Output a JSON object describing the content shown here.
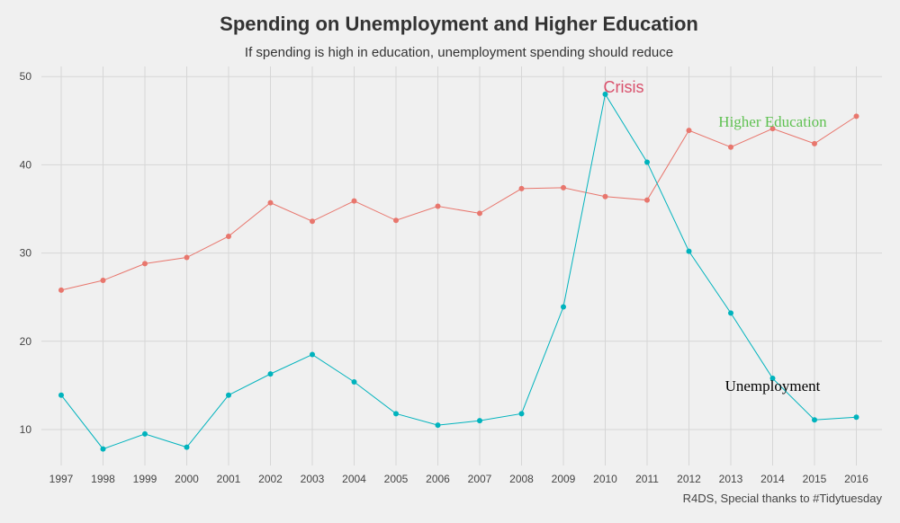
{
  "chart_data": {
    "type": "line",
    "title": "Spending on Unemployment and Higher Education",
    "subtitle": "If spending is high in education, unemployment spending should reduce",
    "caption": "R4DS, Special thanks to #Tidytuesday",
    "xlabel": "",
    "ylabel": "",
    "ylim": [
      5.5,
      51
    ],
    "y_ticks": [
      10,
      20,
      30,
      40,
      50
    ],
    "x": [
      "1997",
      "1998",
      "1999",
      "2000",
      "2001",
      "2002",
      "2003",
      "2004",
      "2005",
      "2006",
      "2007",
      "2008",
      "2009",
      "2010",
      "2011",
      "2012",
      "2013",
      "2014",
      "2015",
      "2016"
    ],
    "grid": true,
    "series": [
      {
        "color": "#e8766d",
        "values": [
          25.8,
          26.9,
          28.8,
          29.5,
          31.9,
          35.7,
          33.6,
          35.9,
          33.7,
          35.3,
          34.5,
          37.3,
          37.4,
          36.4,
          36.0,
          43.9,
          42.0,
          44.1,
          42.4,
          45.5
        ]
      },
      {
        "color": "#00b3bd",
        "values": [
          13.9,
          7.8,
          9.5,
          8.0,
          13.9,
          16.3,
          18.5,
          15.4,
          11.8,
          10.5,
          11.0,
          11.8,
          23.9,
          48.0,
          40.3,
          30.2,
          23.2,
          15.8,
          11.1,
          11.4
        ]
      }
    ],
    "annotations": [
      {
        "text": "Crisis",
        "x": "2010",
        "y": 48.2,
        "color": "#d9506b",
        "anchor": "start",
        "dx": -2,
        "font": "sans"
      },
      {
        "text": "Higher Education",
        "x": "2014",
        "y": 44.3,
        "color": "#5fc152",
        "anchor": "middle",
        "dx": 0,
        "font": "serif"
      },
      {
        "text": "Unemployment",
        "x": "2014",
        "y": 14.4,
        "color": "#000000",
        "anchor": "middle",
        "dx": 0,
        "font": "serif"
      }
    ]
  }
}
